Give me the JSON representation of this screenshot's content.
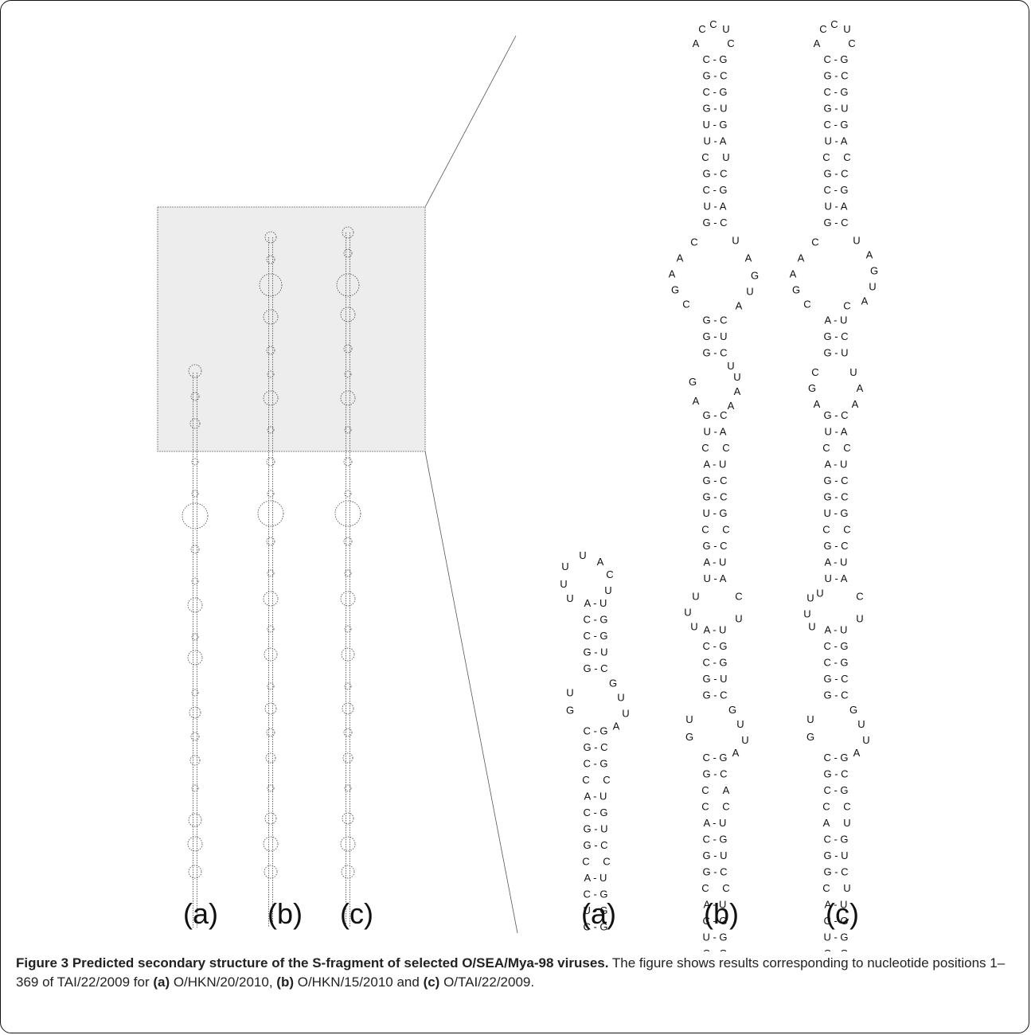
{
  "panel_labels": {
    "left": [
      "(a)",
      "(b)",
      "(c)"
    ],
    "right": [
      "(a)",
      "(b)",
      "(c)"
    ]
  },
  "caption": {
    "title": "Figure 3 Predicted secondary structure of the S-fragment of selected O/SEA/Mya-98 viruses.",
    "text_1": " The figure shows results corresponding to nucleotide positions 1–369 of TAI/22/2009 for ",
    "label_a": "(a)",
    "strain_a": " O/HKN/20/2010, ",
    "label_b": "(b)",
    "strain_b": " O/HKN/15/2010 and ",
    "label_c": "(c)",
    "strain_c": " O/TAI/22/2009."
  },
  "structures": {
    "a": {
      "hairpin_loop": [
        "U",
        "U",
        "A",
        "C",
        "U",
        "U",
        "U"
      ],
      "stem_1": [
        "A-U",
        "C-G",
        "C-G",
        "G-U",
        "G-C"
      ],
      "internal_loop_1": {
        "left": [
          "U",
          "G"
        ],
        "right": [
          "G",
          "U",
          "U",
          "A"
        ]
      },
      "stem_2": [
        "C-G",
        "G-C",
        "C-G"
      ],
      "mismatch_1": [
        "C",
        "C"
      ],
      "stem_3": [
        "A-U",
        "C-G",
        "G-U",
        "G-C"
      ],
      "mismatch_2": [
        "C",
        "C"
      ],
      "stem_4": [
        "A-U",
        "C-G",
        "U-G",
        "C-G"
      ]
    },
    "b": {
      "hairpin_loop": [
        "C",
        "C",
        "U",
        "A",
        "C"
      ],
      "stem_top": [
        "C-G",
        "G-C",
        "C-G",
        "G-U",
        "U-G",
        "U-A"
      ],
      "mismatch_top": [
        "C",
        "U"
      ],
      "stem_2": [
        "G-C",
        "C-G",
        "U-A",
        "G-C"
      ],
      "big_loop": {
        "left": [
          "C",
          "A",
          "A",
          "G",
          "C"
        ],
        "right": [
          "U",
          "A",
          "G",
          "U",
          "A"
        ]
      },
      "stem_3": [
        "G-C",
        "G-U",
        "G-C"
      ],
      "loop_2": {
        "left": [
          "G",
          "A"
        ],
        "right": [
          "U",
          "U",
          "A",
          "A"
        ]
      },
      "stem_4": [
        "G-C",
        "U-A"
      ],
      "mismatch_2": [
        "C",
        "C"
      ],
      "stem_5": [
        "A-U",
        "G-C",
        "G-C",
        "U-G"
      ],
      "mismatch_3": [
        "C",
        "C"
      ],
      "stem_6": [
        "G-C",
        "A-U",
        "U-A"
      ],
      "loop_3": {
        "left": [
          "U",
          "U",
          "U"
        ],
        "right": [
          "C",
          "U"
        ]
      },
      "stem_7": [
        "A-U",
        "C-G",
        "C-G",
        "G-U",
        "G-C"
      ],
      "internal_loop_1": {
        "left": [
          "U",
          "G"
        ],
        "right": [
          "G",
          "U",
          "U",
          "A"
        ]
      },
      "stem_8": [
        "C-G",
        "G-C"
      ],
      "mismatch_4": [
        "C",
        "A"
      ],
      "mismatch_5": [
        "C",
        "C"
      ],
      "stem_9": [
        "A-U",
        "C-G",
        "G-U",
        "G-C"
      ],
      "mismatch_6": [
        "C",
        "C"
      ],
      "stem_10": [
        "A-U",
        "C-G",
        "U-G",
        "C-G"
      ]
    },
    "c": {
      "hairpin_loop": [
        "C",
        "C",
        "U",
        "A",
        "C"
      ],
      "stem_top": [
        "C-G",
        "G-C",
        "C-G",
        "G-U",
        "C-G",
        "U-A"
      ],
      "mismatch_top": [
        "C",
        "C"
      ],
      "stem_2": [
        "G-C",
        "C-G",
        "U-A",
        "G-C"
      ],
      "big_loop": {
        "left": [
          "C",
          "A",
          "A",
          "G",
          "C"
        ],
        "right": [
          "U",
          "A",
          "G",
          "U",
          "A",
          "C"
        ]
      },
      "stem_3": [
        "A-U",
        "G-C",
        "G-U"
      ],
      "loop_2": {
        "left": [
          "C",
          "G",
          "A"
        ],
        "right": [
          "U",
          "A",
          "A"
        ]
      },
      "stem_4": [
        "G-C",
        "U-A"
      ],
      "mismatch_2": [
        "C",
        "C"
      ],
      "stem_5": [
        "A-U",
        "G-C",
        "G-C",
        "U-G"
      ],
      "mismatch_3": [
        "C",
        "C"
      ],
      "stem_6": [
        "G-C",
        "A-U",
        "U-A"
      ],
      "loop_3": {
        "left": [
          "U",
          "U",
          "U",
          "U"
        ],
        "right": [
          "C",
          "U"
        ]
      },
      "stem_7": [
        "A-U",
        "C-G",
        "C-G",
        "G-C",
        "G-C"
      ],
      "internal_loop_1": {
        "left": [
          "U",
          "G"
        ],
        "right": [
          "G",
          "U",
          "U",
          "A"
        ]
      },
      "stem_8": [
        "C-G",
        "G-C",
        "C-G"
      ],
      "mismatch_4": [
        "C",
        "C"
      ],
      "mismatch_5": [
        "A",
        "U"
      ],
      "stem_9": [
        "C-G",
        "G-U",
        "G-C"
      ],
      "mismatch_6": [
        "C",
        "U"
      ],
      "stem_10": [
        "A-U",
        "C-G",
        "U-G",
        "C-G"
      ]
    }
  }
}
